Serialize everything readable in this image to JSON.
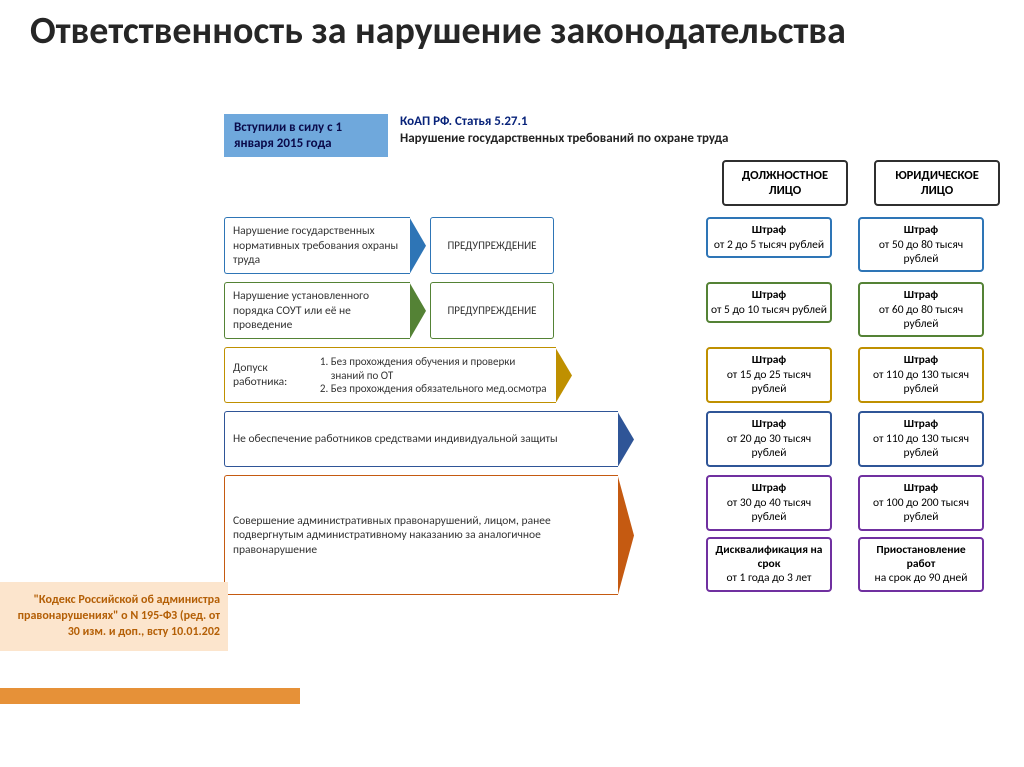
{
  "title": "Ответственность за нарушение законодательства",
  "effective": "Вступили в силу с 1 января 2015 года",
  "law_title": "КоАП РФ. Статья 5.27.1",
  "law_sub": "Нарушение государственных требований по охране труда",
  "col1": "ДОЛЖНОСТНОЕ ЛИЦО",
  "col2": "ЮРИДИЧЕСКОЕ ЛИЦО",
  "source": "\"Кодекс Российской об администра правонарушениях\" о N 195-ФЗ (ред. от 30 изм. и доп., всту 10.01.202",
  "colors": {
    "r1": "#2e75b6",
    "r2": "#548235",
    "r3": "#bf9000",
    "r4": "#2f5597",
    "r5": "#c55a11",
    "r6": "#7030a0",
    "head": "#2f2f2f"
  },
  "rows": [
    {
      "v_width": 186,
      "violation": "Нарушение государственных нормативных требования охраны труда",
      "warning": "ПРЕДУПРЕЖДЕНИЕ",
      "color": "r1",
      "p1": [
        {
          "b": "Штраф",
          "t": "от 2 до 5 тысяч рублей"
        }
      ],
      "p2": [
        {
          "b": "Штраф",
          "t": "от 50 до 80 тысяч рублей"
        }
      ]
    },
    {
      "v_width": 186,
      "violation": "Нарушение установленного порядка СОУТ или её не проведение",
      "warning": "ПРЕДУПРЕЖДЕНИЕ",
      "color": "r2",
      "p1": [
        {
          "b": "Штраф",
          "t": "от 5 до 10 тысяч рублей"
        }
      ],
      "p2": [
        {
          "b": "Штраф",
          "t": "от 60 до 80 тысяч рублей"
        }
      ]
    },
    {
      "v_width": 332,
      "violation_html": "Допуск работника:<ol class='inner'><li>Без прохождения обучения и проверки знаний по ОТ</li><li>Без прохождения обязательного мед.осмотра</li></ol>",
      "color": "r3",
      "p1": [
        {
          "b": "Штраф",
          "t": "от 15 до 25 тысяч рублей"
        }
      ],
      "p2": [
        {
          "b": "Штраф",
          "t": "от 110 до 130 тысяч рублей"
        }
      ]
    },
    {
      "v_width": 394,
      "violation": "Не обеспечение работников средствами индивидуальной защиты",
      "color": "r4",
      "p1": [
        {
          "b": "Штраф",
          "t": "от 20 до 30 тысяч рублей"
        }
      ],
      "p2": [
        {
          "b": "Штраф",
          "t": "от 110 до 130 тысяч рублей"
        }
      ]
    },
    {
      "v_width": 394,
      "tall": true,
      "violation": "Совершение административных правонарушений, лицом, ранее подвергнутым административному наказанию за аналогичное правонарушение",
      "color": "r5",
      "p1": [
        {
          "b": "Штраф",
          "t": "от 30 до 40 тысяч рублей"
        },
        {
          "b": "Дисквалификация на срок",
          "t": "от 1 года до 3 лет"
        }
      ],
      "p2": [
        {
          "b": "Штраф",
          "t": "от 100 до 200 тысяч рублей"
        },
        {
          "b": "Приостановление работ",
          "t": "на срок до 90 дней"
        }
      ],
      "p_color": "r6"
    }
  ]
}
